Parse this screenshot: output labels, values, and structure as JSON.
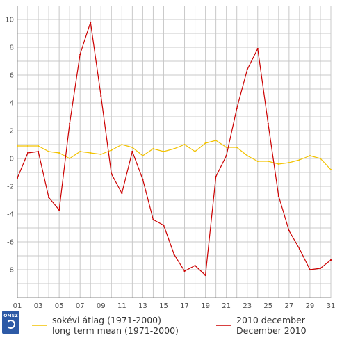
{
  "chart_data": {
    "type": "line",
    "title": "",
    "xlabel": "",
    "ylabel": "",
    "categories": [
      "01",
      "02",
      "03",
      "04",
      "05",
      "06",
      "07",
      "08",
      "09",
      "10",
      "11",
      "12",
      "13",
      "14",
      "15",
      "16",
      "17",
      "18",
      "19",
      "20",
      "21",
      "22",
      "23",
      "24",
      "25",
      "26",
      "27",
      "28",
      "29",
      "30",
      "31"
    ],
    "x_tick_labels": [
      "01",
      "03",
      "05",
      "07",
      "09",
      "11",
      "13",
      "15",
      "17",
      "19",
      "21",
      "23",
      "25",
      "27",
      "29",
      "31"
    ],
    "y_tick_labels": [
      "10",
      "8",
      "6",
      "4",
      "2",
      "0",
      "-2",
      "-4",
      "-6",
      "-8"
    ],
    "ylim": [
      -10,
      11
    ],
    "y_ticks": [
      10,
      8,
      6,
      4,
      2,
      0,
      -2,
      -4,
      -6,
      -8
    ],
    "grid": true,
    "legend_position": "bottom",
    "series": [
      {
        "name": "sokévi átlag (1971-2000) long term mean (1971-2000)",
        "legend_line1": "sokévi átlag (1971-2000)",
        "legend_line2": "long term mean (1971-2000)",
        "color": "#f2c200",
        "values": [
          0.9,
          0.9,
          0.9,
          0.5,
          0.4,
          0.0,
          0.5,
          0.4,
          0.3,
          0.6,
          1.0,
          0.8,
          0.2,
          0.7,
          0.5,
          0.7,
          1.0,
          0.5,
          1.1,
          1.3,
          0.8,
          0.8,
          0.2,
          -0.2,
          -0.2,
          -0.4,
          -0.3,
          -0.1,
          0.2,
          0.0,
          -0.8
        ]
      },
      {
        "name": "2010 december December 2010",
        "legend_line1": "2010 december",
        "legend_line2": "December 2010",
        "color": "#cc0000",
        "values": [
          -1.4,
          0.4,
          0.5,
          -2.8,
          -3.7,
          2.5,
          7.5,
          9.8,
          4.5,
          -1.1,
          -2.5,
          0.5,
          -1.5,
          -4.4,
          -4.8,
          -6.9,
          -8.1,
          -7.7,
          -8.4,
          -1.3,
          0.2,
          3.6,
          6.4,
          7.9,
          2.5,
          -2.7,
          -5.2,
          -6.5,
          -8.0,
          -7.9,
          -7.3
        ]
      }
    ]
  },
  "logo": {
    "text": "OMSZ"
  }
}
